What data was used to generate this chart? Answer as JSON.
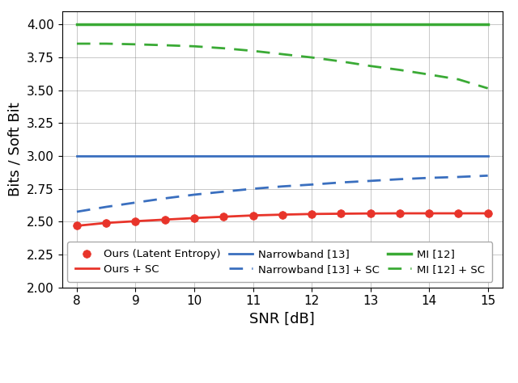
{
  "snr": [
    8.0,
    8.5,
    9.0,
    9.5,
    10.0,
    10.5,
    11.0,
    11.5,
    12.0,
    12.5,
    13.0,
    13.5,
    14.0,
    14.5,
    15.0
  ],
  "ours_latent_entropy": [
    2.468,
    2.49,
    2.503,
    2.515,
    2.527,
    2.537,
    2.547,
    2.553,
    2.558,
    2.56,
    2.562,
    2.563,
    2.563,
    2.563,
    2.563
  ],
  "ours_sc": [
    2.468,
    2.49,
    2.503,
    2.515,
    2.527,
    2.537,
    2.547,
    2.553,
    2.558,
    2.56,
    2.562,
    2.563,
    2.563,
    2.563,
    2.563
  ],
  "narrowband_13": [
    3.0,
    3.0,
    3.0,
    3.0,
    3.0,
    3.0,
    3.0,
    3.0,
    3.0,
    3.0,
    3.0,
    3.0,
    3.0,
    3.0,
    3.0
  ],
  "narrowband_13_sc": [
    2.575,
    2.612,
    2.645,
    2.677,
    2.705,
    2.728,
    2.75,
    2.768,
    2.782,
    2.798,
    2.81,
    2.823,
    2.833,
    2.84,
    2.85
  ],
  "mi_12": [
    4.0,
    4.0,
    4.0,
    4.0,
    4.0,
    4.0,
    4.0,
    4.0,
    4.0,
    4.0,
    4.0,
    4.0,
    4.0,
    4.0,
    4.0
  ],
  "mi_12_sc": [
    3.855,
    3.855,
    3.85,
    3.843,
    3.835,
    3.82,
    3.8,
    3.775,
    3.75,
    3.72,
    3.685,
    3.655,
    3.62,
    3.583,
    3.515
  ],
  "color_red": "#e8342a",
  "color_blue": "#3a6fbf",
  "color_green": "#3aaa35",
  "xlabel": "SNR [dB]",
  "ylabel": "Bits / Soft Bit",
  "ylim": [
    2.0,
    4.1
  ],
  "xlim": [
    7.75,
    15.25
  ],
  "yticks": [
    2.0,
    2.25,
    2.5,
    2.75,
    3.0,
    3.25,
    3.5,
    3.75,
    4.0
  ],
  "xticks": [
    8,
    9,
    10,
    11,
    12,
    13,
    14,
    15
  ],
  "figsize": [
    6.4,
    4.74
  ],
  "dpi": 100
}
